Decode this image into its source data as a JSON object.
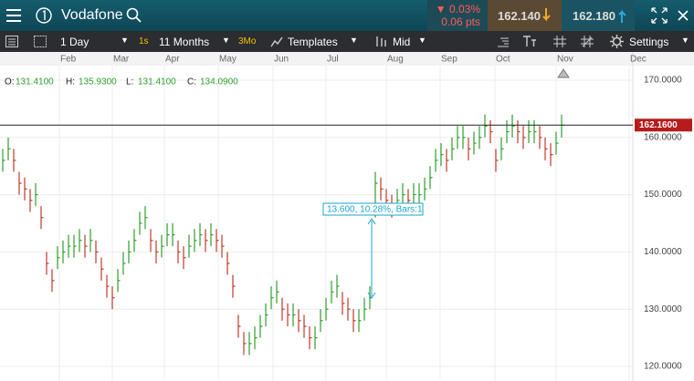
{
  "header": {
    "instrument": "Vodafone",
    "change_pct": "▼ 0.03%",
    "change_pts": "0.06 pts",
    "sell": "162.140",
    "buy": "162.180"
  },
  "toolbar": {
    "interval": "1 Day",
    "interval_short": "1s",
    "range": "11 Months",
    "range_short": "3Mo",
    "templates": "Templates",
    "price_type": "Mid",
    "settings": "Settings"
  },
  "ohlc": {
    "o_label": "O:",
    "o": "131.4100",
    "h_label": "H:",
    "h": "135.9300",
    "l_label": "L:",
    "l": "131.4100",
    "c_label": "C:",
    "c": "134.0900"
  },
  "chart_data": {
    "type": "ohlc",
    "months": [
      "Feb",
      "Mar",
      "Apr",
      "May",
      "Jun",
      "Jul",
      "Aug",
      "Sep",
      "Oct",
      "Nov",
      "Dec"
    ],
    "close": [
      156,
      158,
      156,
      152,
      151,
      149,
      150,
      146,
      138,
      135,
      139,
      140,
      141,
      141,
      142,
      141,
      142,
      140,
      137,
      134,
      132,
      135,
      138,
      140,
      142,
      145,
      146,
      142,
      140,
      141,
      143,
      143,
      140,
      139,
      141,
      142,
      143,
      142,
      143,
      142,
      141,
      138,
      134,
      127,
      124,
      124,
      125,
      127,
      129,
      132,
      133,
      130,
      129,
      129,
      128,
      127,
      125,
      125,
      128,
      130,
      133,
      134,
      131,
      130,
      128,
      128,
      130,
      132,
      152,
      151,
      149,
      148,
      149,
      150,
      149,
      150,
      150,
      151,
      153,
      156,
      157,
      156,
      158,
      160,
      160,
      158,
      159,
      160,
      162,
      161,
      156,
      158,
      161,
      162,
      161,
      160,
      161,
      161,
      160,
      158,
      157,
      159,
      162.16
    ],
    "high": [
      158,
      160,
      158,
      154,
      153,
      151,
      152,
      148,
      140,
      137,
      141,
      142,
      143,
      143,
      144,
      143,
      144,
      142,
      139,
      136,
      134,
      137,
      140,
      142,
      144,
      147,
      148,
      144,
      142,
      143,
      145,
      145,
      142,
      141,
      143,
      144,
      145,
      144,
      145,
      144,
      143,
      140,
      136,
      129,
      126,
      126,
      127,
      129,
      131,
      134,
      135,
      132,
      131,
      131,
      130,
      129,
      127,
      127,
      130,
      132,
      135,
      136,
      133,
      132,
      130,
      130,
      132,
      134,
      154,
      153,
      151,
      150,
      151,
      152,
      151,
      152,
      152,
      153,
      155,
      158,
      159,
      158,
      160,
      162,
      162,
      160,
      161,
      162,
      164,
      163,
      158,
      160,
      163,
      164,
      163,
      162,
      163,
      163,
      162,
      160,
      159,
      161,
      164
    ],
    "low": [
      154,
      156,
      154,
      150,
      149,
      147,
      148,
      144,
      136,
      133,
      137,
      138,
      139,
      139,
      140,
      139,
      140,
      138,
      135,
      132,
      130,
      133,
      136,
      138,
      140,
      143,
      144,
      140,
      138,
      139,
      141,
      141,
      138,
      137,
      139,
      140,
      141,
      140,
      141,
      140,
      139,
      136,
      132,
      125,
      122,
      122,
      123,
      125,
      127,
      130,
      131,
      128,
      127,
      127,
      126,
      125,
      123,
      123,
      126,
      128,
      131,
      132,
      129,
      128,
      126,
      126,
      128,
      130,
      146,
      149,
      147,
      146,
      147,
      148,
      147,
      148,
      148,
      149,
      151,
      154,
      155,
      154,
      156,
      158,
      158,
      156,
      157,
      158,
      160,
      159,
      154,
      156,
      159,
      160,
      159,
      158,
      159,
      159,
      158,
      156,
      155,
      157,
      160
    ],
    "ylim": [
      117.45,
      172.55
    ],
    "yticks": [
      {
        "value": 120,
        "label": "120.0000"
      },
      {
        "value": 130,
        "label": "130.0000"
      },
      {
        "value": 140,
        "label": "140.0000"
      },
      {
        "value": 150,
        "label": "150.0000"
      },
      {
        "value": 160,
        "label": "160.0000"
      },
      {
        "value": 170,
        "label": "170.0000"
      }
    ],
    "last_price": {
      "value": 162.16,
      "label": "162.1600"
    },
    "annotation": "13.600, 10.28%, Bars:1",
    "colors": {
      "up": "#2f9e2f",
      "down": "#c0392b"
    },
    "grid": true
  }
}
